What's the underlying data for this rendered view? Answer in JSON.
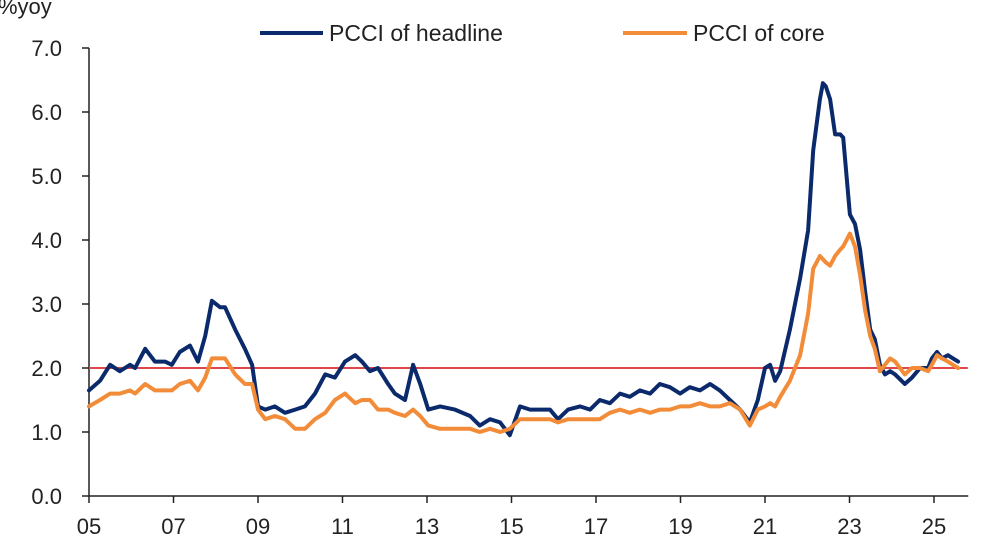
{
  "chart_data": {
    "type": "line",
    "title": "",
    "ylabel": "%yoy",
    "xlabel": "",
    "ylim": [
      0,
      7
    ],
    "xlim": [
      2005,
      2026
    ],
    "yticks": [
      "0.0",
      "1.0",
      "2.0",
      "3.0",
      "4.0",
      "5.0",
      "6.0",
      "7.0"
    ],
    "xticks": [
      "05",
      "07",
      "09",
      "11",
      "13",
      "15",
      "17",
      "19",
      "21",
      "23",
      "25"
    ],
    "grid": false,
    "legend_position": "top",
    "reference_line": {
      "value": 2.0,
      "color": "#e0454a"
    },
    "x": [
      2005.0,
      2005.26,
      2005.5,
      2005.73,
      2005.97,
      2006.09,
      2006.33,
      2006.56,
      2006.8,
      2006.96,
      2007.15,
      2007.39,
      2007.58,
      2007.75,
      2007.91,
      2008.1,
      2008.22,
      2008.46,
      2008.69,
      2008.86,
      2009.0,
      2009.17,
      2009.4,
      2009.64,
      2009.88,
      2010.11,
      2010.35,
      2010.59,
      2010.82,
      2011.06,
      2011.3,
      2011.46,
      2011.65,
      2011.84,
      2012.08,
      2012.24,
      2012.48,
      2012.67,
      2012.84,
      2013.03,
      2013.31,
      2013.66,
      2014.02,
      2014.25,
      2014.49,
      2014.73,
      2014.96,
      2015.2,
      2015.44,
      2015.67,
      2015.91,
      2016.1,
      2016.34,
      2016.62,
      2016.86,
      2017.09,
      2017.33,
      2017.57,
      2017.8,
      2018.04,
      2018.28,
      2018.51,
      2018.75,
      2018.99,
      2019.22,
      2019.46,
      2019.7,
      2019.93,
      2020.17,
      2020.41,
      2020.64,
      2020.83,
      2021.0,
      2021.12,
      2021.24,
      2021.36,
      2021.59,
      2021.83,
      2022.02,
      2022.14,
      2022.3,
      2022.37,
      2022.44,
      2022.54,
      2022.66,
      2022.78,
      2022.85,
      2023.01,
      2023.13,
      2023.25,
      2023.37,
      2023.49,
      2023.6,
      2023.72,
      2023.84,
      2023.96,
      2024.08,
      2024.31,
      2024.48,
      2024.67,
      2024.86,
      2024.95,
      2025.07,
      2025.19,
      2025.33,
      2025.45,
      2025.57
    ],
    "series": [
      {
        "name": "PCCI of headline",
        "color": "#0b2a6b",
        "values": [
          1.65,
          1.8,
          2.05,
          1.95,
          2.05,
          2.0,
          2.3,
          2.1,
          2.1,
          2.05,
          2.25,
          2.35,
          2.1,
          2.5,
          3.05,
          2.95,
          2.95,
          2.6,
          2.3,
          2.05,
          1.4,
          1.35,
          1.4,
          1.3,
          1.35,
          1.4,
          1.6,
          1.9,
          1.85,
          2.1,
          2.2,
          2.1,
          1.95,
          2.0,
          1.75,
          1.6,
          1.5,
          2.05,
          1.75,
          1.35,
          1.4,
          1.35,
          1.25,
          1.1,
          1.2,
          1.15,
          0.95,
          1.4,
          1.35,
          1.35,
          1.35,
          1.2,
          1.35,
          1.4,
          1.35,
          1.5,
          1.45,
          1.6,
          1.55,
          1.65,
          1.6,
          1.75,
          1.7,
          1.6,
          1.7,
          1.65,
          1.75,
          1.65,
          1.5,
          1.35,
          1.15,
          1.5,
          2.0,
          2.05,
          1.8,
          1.95,
          2.6,
          3.4,
          4.15,
          5.4,
          6.2,
          6.45,
          6.4,
          6.2,
          5.65,
          5.65,
          5.6,
          4.4,
          4.25,
          3.85,
          3.2,
          2.6,
          2.45,
          2.05,
          1.9,
          1.95,
          1.9,
          1.75,
          1.85,
          2.0,
          2.0,
          2.15,
          2.25,
          2.15,
          2.2,
          2.15,
          2.1
        ]
      },
      {
        "name": "PCCI of core",
        "color": "#f28c38",
        "values": [
          1.4,
          1.5,
          1.6,
          1.6,
          1.65,
          1.6,
          1.75,
          1.65,
          1.65,
          1.65,
          1.75,
          1.8,
          1.65,
          1.85,
          2.15,
          2.15,
          2.15,
          1.9,
          1.75,
          1.75,
          1.35,
          1.2,
          1.25,
          1.2,
          1.05,
          1.05,
          1.2,
          1.3,
          1.5,
          1.6,
          1.45,
          1.5,
          1.5,
          1.35,
          1.35,
          1.3,
          1.25,
          1.35,
          1.25,
          1.1,
          1.05,
          1.05,
          1.05,
          1.0,
          1.05,
          1.0,
          1.05,
          1.2,
          1.2,
          1.2,
          1.2,
          1.15,
          1.2,
          1.2,
          1.2,
          1.2,
          1.3,
          1.35,
          1.3,
          1.35,
          1.3,
          1.35,
          1.35,
          1.4,
          1.4,
          1.45,
          1.4,
          1.4,
          1.45,
          1.35,
          1.1,
          1.35,
          1.4,
          1.45,
          1.4,
          1.55,
          1.8,
          2.2,
          2.85,
          3.55,
          3.75,
          3.7,
          3.65,
          3.6,
          3.75,
          3.85,
          3.9,
          4.1,
          3.9,
          3.45,
          2.9,
          2.5,
          2.3,
          1.95,
          2.05,
          2.15,
          2.1,
          1.9,
          2.0,
          2.0,
          1.95,
          2.05,
          2.2,
          2.15,
          2.1,
          2.05,
          2.0
        ]
      }
    ]
  }
}
